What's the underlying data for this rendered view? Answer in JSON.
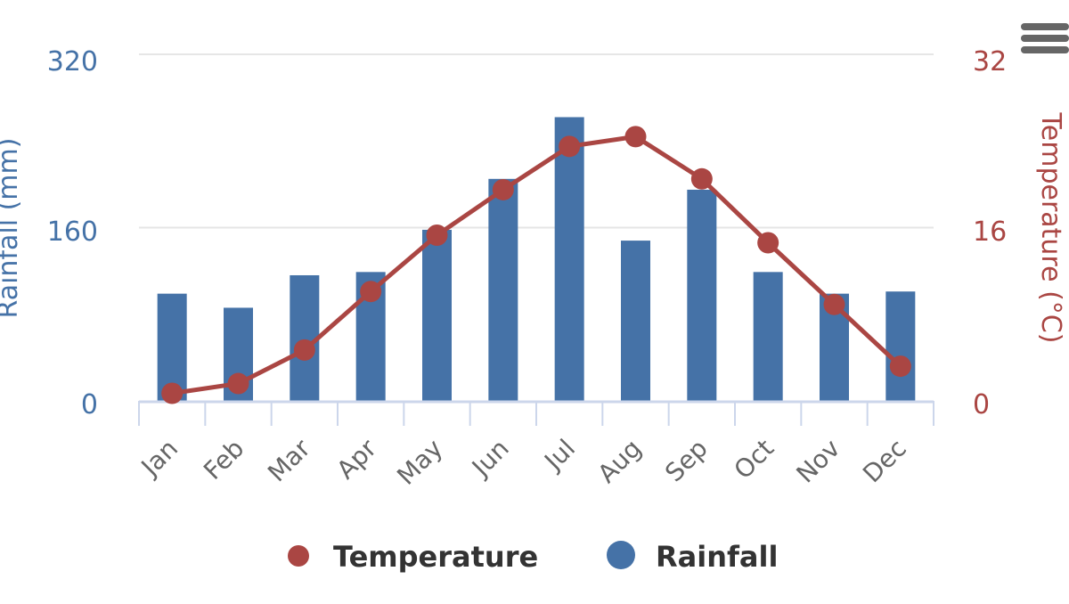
{
  "colors": {
    "rainfall": "#4572a7",
    "temperature": "#aa4643",
    "grid": "#e6e6e6",
    "axis": "#ccd6eb",
    "tick_text": "#666666",
    "legend_text": "#333333"
  },
  "menu": {
    "icon": "hamburger-menu-icon"
  },
  "chart_data": {
    "type": "bar+line",
    "categories": [
      "Jan",
      "Feb",
      "Mar",
      "Apr",
      "May",
      "Jun",
      "Jul",
      "Aug",
      "Sep",
      "Oct",
      "Nov",
      "Dec"
    ],
    "series": [
      {
        "name": "Rainfall",
        "type": "bar",
        "axis": "left",
        "values": [
          99,
          86,
          116,
          119,
          158,
          205,
          262,
          148,
          195,
          119,
          99,
          101
        ]
      },
      {
        "name": "Temperature",
        "type": "line",
        "axis": "right",
        "values": [
          0.7,
          1.6,
          4.7,
          10.1,
          15.3,
          19.5,
          23.5,
          24.4,
          20.5,
          14.6,
          8.9,
          3.2
        ]
      }
    ],
    "y_left": {
      "label": "Rainfall (mm)",
      "range": [
        0,
        320
      ],
      "ticks": [
        "0",
        "160",
        "320"
      ]
    },
    "y_right": {
      "label": "Temperature (°C)",
      "range": [
        0,
        32
      ],
      "ticks": [
        "0",
        "16",
        "32"
      ]
    },
    "grid": true,
    "legend": {
      "position": "bottom",
      "items": [
        "Temperature",
        "Rainfall"
      ]
    }
  }
}
